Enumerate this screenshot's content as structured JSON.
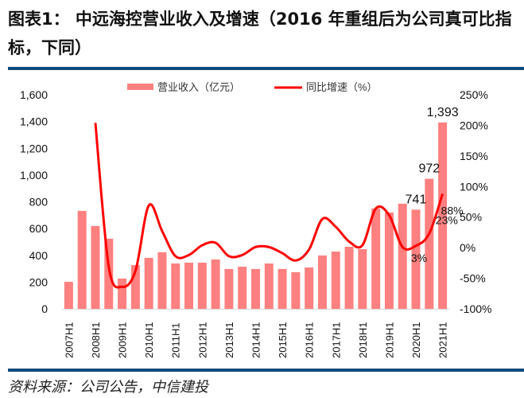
{
  "header": {
    "title": "图表1：  中远海控营业收入及增速（2016 年重组后为公司真可比指标，下同）"
  },
  "footer": {
    "source": "资料来源：公司公告，中信建投"
  },
  "colors": {
    "bar": "#ff8080",
    "line": "#ff0000",
    "rule": "#0b4a7d"
  },
  "chart_data": {
    "type": "bar+line",
    "categories": [
      "2007H1",
      "2007H2",
      "2008H1",
      "2008H2",
      "2009H1",
      "2009H2",
      "2010H1",
      "2010H2",
      "2011H1",
      "2011H2",
      "2012H1",
      "2012H2",
      "2013H1",
      "2013H2",
      "2014H1",
      "2014H2",
      "2015H1",
      "2015H2",
      "2016H1",
      "2016H2",
      "2017H1",
      "2017H2",
      "2018H1",
      "2018H2",
      "2019H1",
      "2019H2",
      "2020H1",
      "2020H2",
      "2021H1"
    ],
    "tick_labels": [
      "2007H1",
      "2008H1",
      "2009H1",
      "2010H1",
      "2011H1",
      "2012H1",
      "2013H1",
      "2014H1",
      "2015H1",
      "2016H1",
      "2017H1",
      "2018H1",
      "2019H1",
      "2020H1",
      "2021H1"
    ],
    "series": [
      {
        "name": "营业收入（亿元）",
        "type": "bar",
        "axis": "left",
        "values": [
          202,
          732,
          619,
          524,
          226,
          327,
          381,
          423,
          339,
          345,
          345,
          369,
          298,
          315,
          298,
          339,
          298,
          274,
          309,
          399,
          428,
          464,
          446,
          750,
          720,
          786,
          741,
          972,
          1393
        ]
      },
      {
        "name": "同比增速（%）",
        "type": "line",
        "axis": "right",
        "values": [
          null,
          null,
          204,
          -31,
          -64,
          -38,
          69,
          27,
          -14,
          -12,
          4,
          8,
          -14,
          -12,
          1,
          1,
          -9,
          -21,
          -3,
          47,
          34,
          10,
          4,
          64,
          53,
          1,
          3,
          23,
          88
        ]
      }
    ],
    "data_labels": [
      {
        "category": "2020H1",
        "text": "741"
      },
      {
        "category": "2020H2",
        "text": "972"
      },
      {
        "category": "2021H1",
        "text": "1,393"
      },
      {
        "category": "2020H1",
        "text": "3%"
      },
      {
        "category": "2020H2",
        "text": "23%"
      },
      {
        "category": "2021H1",
        "text": "88%"
      }
    ],
    "left_axis": {
      "range": [
        0,
        1600
      ],
      "ticks": [
        "0",
        "200",
        "400",
        "600",
        "800",
        "1,000",
        "1,200",
        "1,400",
        "1,600"
      ]
    },
    "right_axis": {
      "range": [
        -100,
        250
      ],
      "ticks": [
        "-100%",
        "-50%",
        "0%",
        "50%",
        "100%",
        "150%",
        "200%",
        "250%"
      ]
    },
    "legend": "top-center",
    "grid": false
  }
}
